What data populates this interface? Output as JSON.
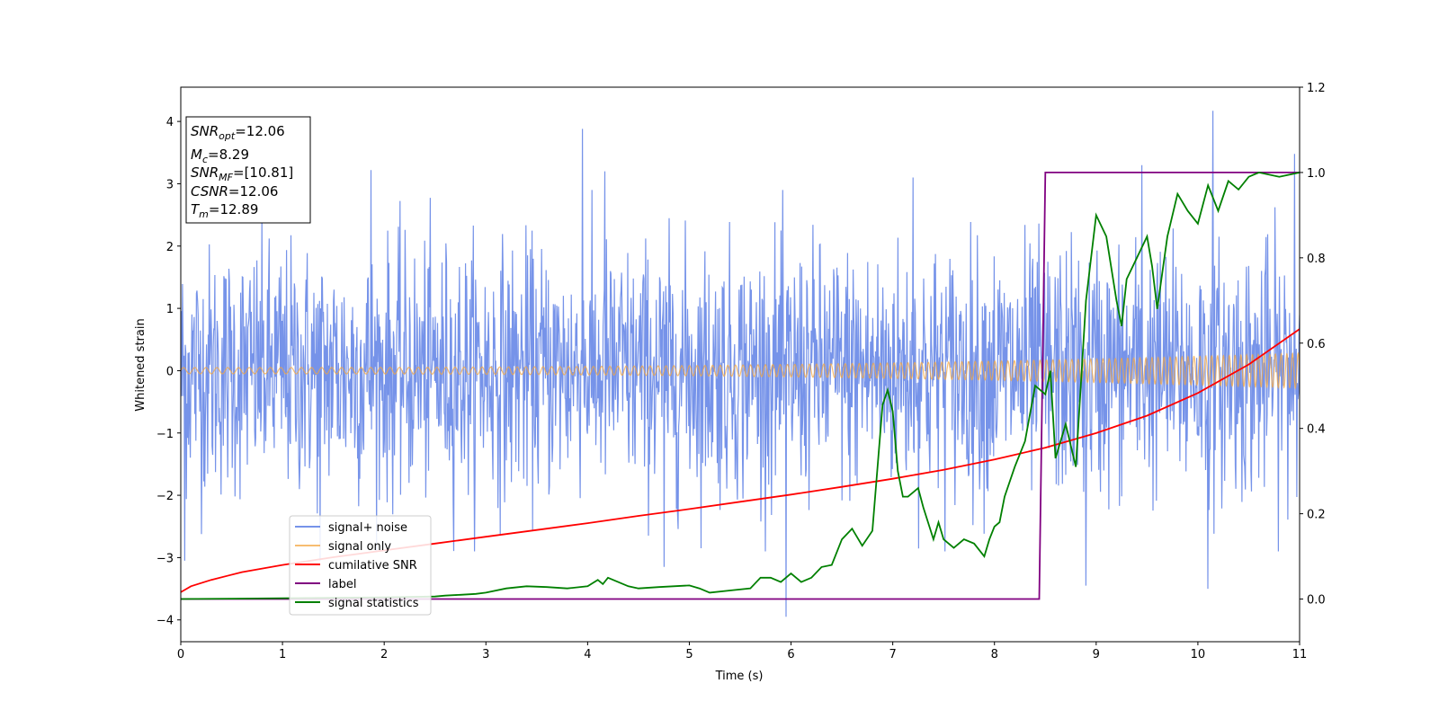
{
  "chart_data": {
    "type": "line",
    "title": "",
    "xlabel": "Time (s)",
    "ylabel": "Whitened strain",
    "xlim": [
      0,
      11
    ],
    "ylim": [
      -4.35,
      4.55
    ],
    "y2lim": [
      -0.1,
      1.2
    ],
    "grid": false,
    "legend_position": "lower-left",
    "x_ticks": [
      0,
      1,
      2,
      3,
      4,
      5,
      6,
      7,
      8,
      9,
      10,
      11
    ],
    "y_ticks": [
      -4,
      -3,
      -2,
      -1,
      0,
      1,
      2,
      3,
      4
    ],
    "y2_ticks": [
      0.0,
      0.2,
      0.4,
      0.6,
      0.8,
      1.0,
      1.2
    ],
    "y2_tick_labels": [
      "0.0",
      "0.2",
      "0.4",
      "0.6",
      "0.8",
      "1.0",
      "1.2"
    ],
    "annotation": {
      "lines": [
        {
          "main": "SNR",
          "sub": "opt",
          "rest": "=12.06"
        },
        {
          "main": "M",
          "sub": "c",
          "rest": "=8.29"
        },
        {
          "main": "SNR",
          "sub": "MF",
          "rest": "=[10.81]"
        },
        {
          "main": "CSNR",
          "sub": "",
          "rest": "=12.06"
        },
        {
          "main": "T",
          "sub": "m",
          "rest": "=12.89"
        }
      ]
    },
    "series": [
      {
        "name": "signal+ noise",
        "axis": "left",
        "color": "#4169e1",
        "kind": "noise",
        "sample_step": 0.0055,
        "std": 1.0,
        "spikes": [
          [
            0.04,
            -3.05
          ],
          [
            1.87,
            3.22
          ],
          [
            3.95,
            3.88
          ],
          [
            4.17,
            3.2
          ],
          [
            5.95,
            -3.95
          ],
          [
            7.2,
            3.1
          ],
          [
            9.45,
            3.3
          ],
          [
            10.15,
            4.17
          ],
          [
            10.95,
            3.48
          ],
          [
            10.1,
            -3.5
          ],
          [
            8.9,
            -3.45
          ],
          [
            4.75,
            -3.15
          ],
          [
            1.37,
            -3.05
          ]
        ]
      },
      {
        "name": "signal only",
        "axis": "left",
        "color": "#f4a742",
        "kind": "chirp",
        "amplitude_start": 0.05,
        "amplitude_end": 0.28,
        "freq_start": 9.0,
        "freq_end": 18.0
      },
      {
        "name": "cumilative SNR",
        "axis": "right",
        "color": "#ff0000",
        "x": [
          0,
          0.1,
          0.3,
          0.6,
          1,
          1.5,
          2,
          2.5,
          3,
          3.5,
          4,
          4.5,
          5,
          5.5,
          6,
          6.5,
          7,
          7.5,
          8,
          8.5,
          9,
          9.5,
          10,
          10.5,
          11
        ],
        "y": [
          0.016,
          0.03,
          0.045,
          0.063,
          0.08,
          0.098,
          0.114,
          0.13,
          0.146,
          0.162,
          0.178,
          0.195,
          0.211,
          0.228,
          0.245,
          0.263,
          0.282,
          0.303,
          0.327,
          0.355,
          0.389,
          0.43,
          0.483,
          0.55,
          0.633
        ]
      },
      {
        "name": "label",
        "axis": "right",
        "color": "#800080",
        "x": [
          0,
          8.44,
          8.5,
          11
        ],
        "y": [
          0,
          0,
          1,
          1
        ]
      },
      {
        "name": "signal statistics",
        "axis": "right",
        "color": "#008000",
        "x": [
          0,
          0.5,
          1,
          1.5,
          2,
          2.5,
          2.6,
          2.75,
          2.9,
          3,
          3.2,
          3.4,
          3.6,
          3.8,
          4,
          4.1,
          4.15,
          4.2,
          4.3,
          4.4,
          4.5,
          4.7,
          5,
          5.1,
          5.2,
          5.4,
          5.6,
          5.7,
          5.8,
          5.9,
          6,
          6.1,
          6.2,
          6.3,
          6.4,
          6.5,
          6.6,
          6.7,
          6.8,
          6.9,
          6.95,
          7,
          7.05,
          7.1,
          7.15,
          7.25,
          7.3,
          7.4,
          7.45,
          7.5,
          7.6,
          7.7,
          7.8,
          7.9,
          7.95,
          8,
          8.05,
          8.1,
          8.2,
          8.3,
          8.4,
          8.5,
          8.55,
          8.6,
          8.7,
          8.8,
          8.9,
          9,
          9.1,
          9.2,
          9.25,
          9.3,
          9.4,
          9.5,
          9.55,
          9.6,
          9.7,
          9.8,
          9.9,
          10,
          10.1,
          10.2,
          10.3,
          10.4,
          10.5,
          10.6,
          10.8,
          11
        ],
        "y": [
          0.0,
          0.001,
          0.002,
          0.003,
          0.004,
          0.006,
          0.008,
          0.01,
          0.012,
          0.015,
          0.025,
          0.03,
          0.028,
          0.025,
          0.03,
          0.045,
          0.035,
          0.05,
          0.04,
          0.03,
          0.025,
          0.028,
          0.032,
          0.025,
          0.015,
          0.02,
          0.025,
          0.05,
          0.05,
          0.04,
          0.06,
          0.04,
          0.05,
          0.075,
          0.08,
          0.14,
          0.165,
          0.125,
          0.16,
          0.455,
          0.49,
          0.44,
          0.3,
          0.24,
          0.24,
          0.26,
          0.215,
          0.14,
          0.18,
          0.14,
          0.12,
          0.14,
          0.13,
          0.1,
          0.14,
          0.17,
          0.18,
          0.24,
          0.31,
          0.37,
          0.5,
          0.48,
          0.535,
          0.33,
          0.41,
          0.31,
          0.7,
          0.9,
          0.85,
          0.7,
          0.64,
          0.75,
          0.8,
          0.85,
          0.78,
          0.68,
          0.85,
          0.95,
          0.91,
          0.88,
          0.97,
          0.91,
          0.98,
          0.96,
          0.99,
          1.0,
          0.99,
          1.0
        ]
      }
    ]
  }
}
